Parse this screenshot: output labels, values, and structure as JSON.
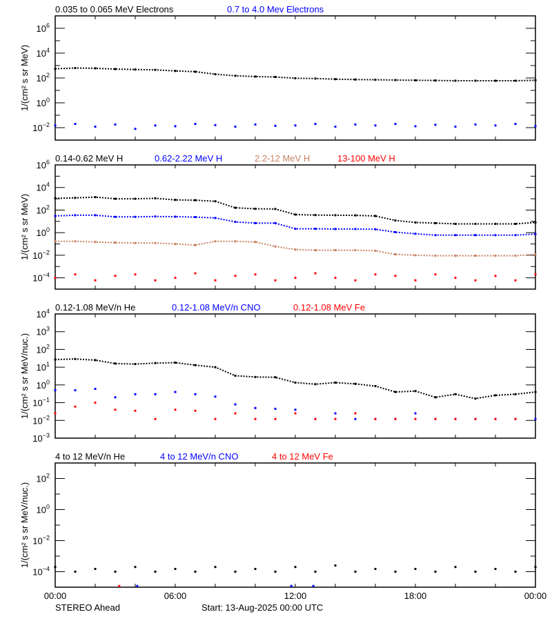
{
  "colors": {
    "black": "#000000",
    "blue": "#0000ff",
    "brown": "#c8805f",
    "red": "#ff0000"
  },
  "x_axis": {
    "range_hours": [
      0,
      24
    ],
    "tick_labels": [
      "00:00",
      "06:00",
      "12:00",
      "18:00",
      "00:00"
    ],
    "tick_hours": [
      0,
      6,
      12,
      18,
      24
    ]
  },
  "footer": {
    "spacecraft": "STEREO Ahead",
    "start": "Start: 13-Aug-2025 00:00 UTC"
  },
  "chart_data": [
    {
      "type": "scatter",
      "yscale": "log",
      "ylim": [
        0.001,
        10000000
      ],
      "ylabel": "1/(cm² s sr MeV)",
      "ytick_exponents": [
        6,
        4,
        2,
        0,
        -2
      ],
      "x_hours": [
        0,
        1,
        2,
        3,
        4,
        5,
        6,
        7,
        8,
        9,
        10,
        11,
        12,
        13,
        14,
        15,
        16,
        17,
        18,
        19,
        20,
        21,
        22,
        23,
        24
      ],
      "series": [
        {
          "name": "0.035 to 0.065 MeV Electrons",
          "color": "#000000",
          "values": [
            550,
            630,
            600,
            520,
            480,
            450,
            370,
            320,
            200,
            150,
            130,
            120,
            95,
            90,
            80,
            75,
            72,
            68,
            65,
            63,
            60,
            60,
            60,
            60,
            65
          ]
        },
        {
          "name": "0.7 to 4.0 Mev Electrons",
          "color": "#0000ff",
          "values": [
            0.015,
            0.02,
            0.012,
            0.018,
            0.008,
            0.015,
            0.013,
            0.02,
            0.016,
            0.012,
            0.018,
            0.014,
            0.015,
            0.02,
            0.012,
            0.018,
            0.015,
            0.02,
            0.013,
            0.017,
            0.012,
            0.018,
            0.015,
            0.02,
            0.013
          ]
        }
      ]
    },
    {
      "type": "scatter",
      "yscale": "log",
      "ylim": [
        1e-05,
        1000000
      ],
      "ylabel": "1/(cm² s sr MeV)",
      "ytick_exponents": [
        6,
        4,
        2,
        0,
        -2,
        -4
      ],
      "x_hours": [
        0,
        1,
        2,
        3,
        4,
        5,
        6,
        7,
        8,
        9,
        10,
        11,
        12,
        13,
        14,
        15,
        16,
        17,
        18,
        19,
        20,
        21,
        22,
        23,
        24
      ],
      "series": [
        {
          "name": "0.14-0.62 MeV H",
          "color": "#000000",
          "values": [
            1100,
            1200,
            1400,
            1000,
            1000,
            1100,
            800,
            750,
            600,
            160,
            130,
            125,
            40,
            36,
            35,
            34,
            30,
            12,
            8,
            7,
            6,
            6,
            6,
            6,
            8
          ]
        },
        {
          "name": "0.62-2.22 MeV H",
          "color": "#0000ff",
          "values": [
            30,
            35,
            35,
            25,
            25,
            27,
            26,
            24,
            20,
            9,
            7,
            7,
            2.2,
            2.2,
            2.1,
            2.1,
            2,
            1.1,
            0.8,
            0.6,
            0.6,
            0.6,
            0.6,
            0.6,
            0.75
          ]
        },
        {
          "name": "2.2-12 MeV H",
          "color": "#c8805f",
          "values": [
            0.17,
            0.17,
            0.15,
            0.13,
            0.12,
            0.12,
            0.1,
            0.08,
            0.17,
            0.17,
            0.15,
            0.06,
            0.032,
            0.028,
            0.028,
            0.028,
            0.025,
            0.012,
            0.01,
            0.009,
            0.009,
            0.009,
            0.009,
            0.009,
            0.012
          ]
        },
        {
          "name": "13-100 MeV H",
          "color": "#ff0000",
          "values": [
            0.0001,
            0.0002,
            6e-05,
            0.00015,
            0.0002,
            6e-05,
            0.0001,
            0.00025,
            6e-05,
            0.00015,
            0.0002,
            6e-05,
            0.0001,
            0.00025,
            0.0001,
            6e-05,
            0.0002,
            0.00015,
            6e-05,
            0.0002,
            0.0001,
            6e-05,
            0.00015,
            6e-05,
            0.0002
          ]
        }
      ]
    },
    {
      "type": "scatter",
      "yscale": "log",
      "ylim": [
        0.001,
        10000
      ],
      "ylabel": "1/(cm² s sr MeV/nuc.)",
      "ytick_exponents": [
        4,
        3,
        2,
        1,
        0,
        -1,
        -2,
        -3
      ],
      "x_hours": [
        0,
        1,
        2,
        3,
        4,
        5,
        6,
        7,
        8,
        9,
        10,
        11,
        12,
        13,
        14,
        15,
        16,
        17,
        18,
        19,
        20,
        21,
        22,
        23,
        24
      ],
      "series": [
        {
          "name": "0.12-1.08 MeV/n He",
          "color": "#000000",
          "values": [
            27,
            29,
            25,
            16,
            15,
            17,
            18,
            13,
            10,
            3.3,
            2.8,
            2.7,
            1.35,
            1.1,
            1.35,
            1.15,
            0.86,
            0.4,
            0.45,
            0.2,
            0.3,
            0.17,
            0.26,
            0.3,
            0.4
          ]
        },
        {
          "name": "0.12-1.08 MeV/n CNO",
          "color": "#0000ff",
          "values": [
            0.5,
            0.5,
            0.6,
            0.2,
            0.3,
            0.3,
            0.4,
            0.3,
            0.22,
            0.08,
            0.05,
            0.045,
            0.04,
            0.012,
            0.025,
            0.012,
            0.012,
            0.012,
            0.025,
            0.012,
            0.012,
            0.012,
            0.012,
            0.012,
            0.012
          ]
        },
        {
          "name": "0.12-1.08 MeV Fe",
          "color": "#ff0000",
          "values": [
            0.025,
            0.06,
            0.1,
            0.04,
            0.035,
            0.012,
            0.04,
            0.035,
            0.012,
            0.025,
            0.012,
            0.012,
            0.025,
            0.012,
            0.012,
            0.025,
            0.012,
            0.012,
            0.012,
            0.012,
            0.012,
            0.012,
            0.012,
            0.012,
            null
          ]
        }
      ]
    },
    {
      "type": "scatter",
      "yscale": "log",
      "ylim": [
        1e-05,
        1000
      ],
      "ylabel": "1/(cm² s sr MeV/nuc.)",
      "ytick_exponents": [
        2,
        0,
        -2,
        -4
      ],
      "x_hours": [
        0,
        1,
        2,
        3,
        4,
        5,
        6,
        7,
        8,
        9,
        10,
        11,
        12,
        13,
        14,
        15,
        16,
        17,
        18,
        19,
        20,
        21,
        22,
        23,
        24
      ],
      "series": [
        {
          "name": "4 to 12 MeV/n He",
          "color": "#000000",
          "values": [
            0.0002,
            0.0001,
            0.00015,
            0.0001,
            0.0002,
            0.0001,
            0.00015,
            0.0001,
            0.0002,
            0.0001,
            0.00015,
            0.0001,
            0.0002,
            0.0001,
            0.00025,
            0.0001,
            0.00015,
            0.0001,
            0.00015,
            0.0001,
            0.0002,
            0.0001,
            0.00015,
            0.0001,
            0.0002
          ]
        },
        {
          "name": "4 to 12 MeV/n CNO",
          "color": "#0000ff",
          "points": [
            [
              4.1,
              1.2e-05
            ],
            [
              11.8,
              1.2e-05
            ],
            [
              12.9,
              1.2e-05
            ]
          ]
        },
        {
          "name": "4 to 12 MeV Fe",
          "color": "#ff0000",
          "points": [
            [
              3.2,
              1.2e-05
            ]
          ]
        }
      ]
    }
  ]
}
